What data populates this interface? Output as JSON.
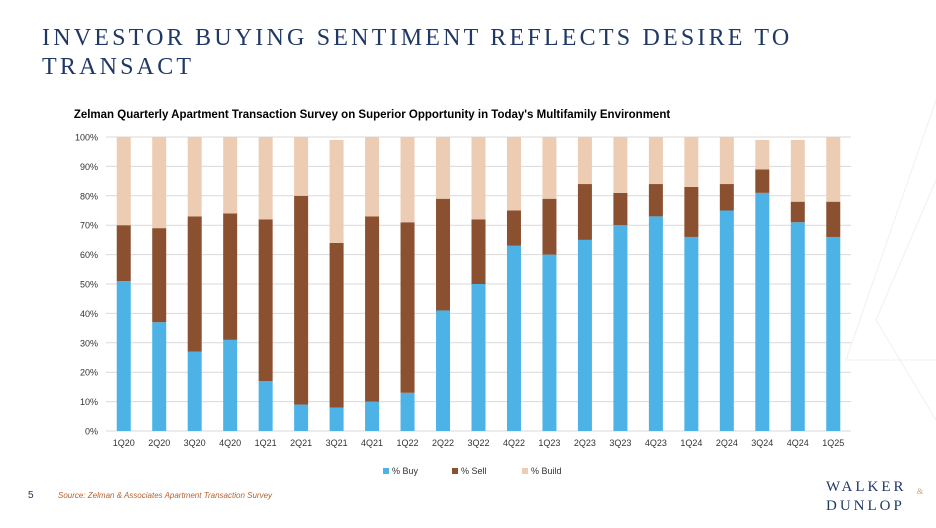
{
  "page": {
    "title": "INVESTOR BUYING SENTIMENT REFLECTS DESIRE TO TRANSACT",
    "page_number": "5",
    "source": "Source: Zelman & Associates Apartment Transaction Survey",
    "logo": {
      "line1": "WALKER",
      "amp": "&",
      "line2": "DUNLOP"
    }
  },
  "colors": {
    "buy": "#4db3e6",
    "sell": "#8b5030",
    "build": "#eccdb4",
    "title": "#1f3864",
    "source": "#b5622e"
  },
  "chart_data": {
    "type": "bar",
    "stacked": true,
    "title": "Zelman Quarterly Apartment Transaction Survey on Superior Opportunity in Today's Multifamily Environment",
    "categories": [
      "1Q20",
      "2Q20",
      "3Q20",
      "4Q20",
      "1Q21",
      "2Q21",
      "3Q21",
      "4Q21",
      "1Q22",
      "2Q22",
      "3Q22",
      "4Q22",
      "1Q23",
      "2Q23",
      "3Q23",
      "4Q23",
      "1Q24",
      "2Q24",
      "3Q24",
      "4Q24",
      "1Q25"
    ],
    "series": [
      {
        "name": "% Buy",
        "values": [
          51,
          37,
          27,
          31,
          17,
          9,
          8,
          10,
          13,
          41,
          50,
          63,
          60,
          65,
          70,
          73,
          66,
          75,
          81,
          71,
          66
        ]
      },
      {
        "name": "% Sell",
        "values": [
          19,
          32,
          46,
          43,
          55,
          71,
          56,
          63,
          58,
          38,
          22,
          12,
          19,
          19,
          11,
          11,
          17,
          9,
          8,
          7,
          12
        ]
      },
      {
        "name": "% Build",
        "values": [
          30,
          31,
          27,
          26,
          28,
          20,
          35,
          27,
          29,
          21,
          28,
          25,
          21,
          16,
          19,
          16,
          17,
          16,
          10,
          21,
          22
        ]
      }
    ],
    "ylim": [
      0,
      100
    ],
    "yticks": [
      "0%",
      "10%",
      "20%",
      "30%",
      "40%",
      "50%",
      "60%",
      "70%",
      "80%",
      "90%",
      "100%"
    ],
    "grid": true,
    "legend_position": "bottom"
  }
}
